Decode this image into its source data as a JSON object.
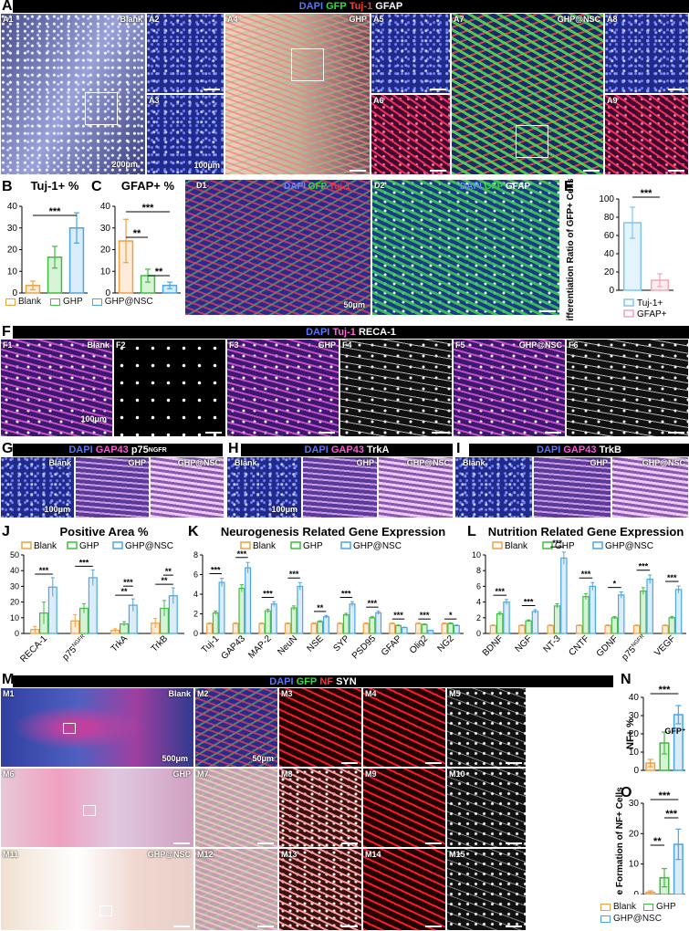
{
  "panels": {
    "A": {
      "letter": "A",
      "stain": [
        "DAPI",
        "GFP",
        "Tuj-1",
        "GFAP"
      ],
      "tiles": [
        "A1",
        "A2",
        "A3",
        "A4",
        "A5",
        "A6",
        "A7",
        "A8",
        "A9"
      ],
      "groups": [
        "Blank",
        "GHP",
        "GHP@NSC"
      ],
      "scale_big": "200μm",
      "scale_small": "100μm"
    },
    "B": {
      "letter": "B"
    },
    "C": {
      "letter": "C"
    },
    "D": {
      "letter": "D",
      "tiles": [
        "D1",
        "D2"
      ],
      "stain1": [
        "DAPI",
        "GFP",
        "Tuj-1"
      ],
      "stain2": [
        "DAPI",
        "GFP",
        "GFAP"
      ],
      "scale": "50μm"
    },
    "E": {
      "letter": "E"
    },
    "F": {
      "letter": "F",
      "stain": [
        "DAPI",
        "Tuj-1",
        "RECA-1"
      ],
      "tiles": [
        "F1",
        "F2",
        "F3",
        "F4",
        "F5",
        "F6"
      ],
      "groups": [
        "Blank",
        "GHP",
        "GHP@NSC"
      ],
      "scale": "100μm"
    },
    "G": {
      "letter": "G",
      "stain": [
        "DAPI",
        "GAP43",
        "p75"
      ],
      "stain_sup": "NGFR",
      "groups": [
        "Blank",
        "GHP",
        "GHP@NSC"
      ],
      "scale": "100μm"
    },
    "H": {
      "letter": "H",
      "stain": [
        "DAPI",
        "GAP43",
        "TrkA"
      ],
      "groups": [
        "Blank",
        "GHP",
        "GHP@NSC"
      ],
      "scale": "100μm"
    },
    "I": {
      "letter": "I",
      "stain": [
        "DAPI",
        "GAP43",
        "TrkB"
      ],
      "groups": [
        "Blank",
        "GHP",
        "GHP@NSC"
      ]
    },
    "J": {
      "letter": "J"
    },
    "K": {
      "letter": "K"
    },
    "L": {
      "letter": "L"
    },
    "M": {
      "letter": "M",
      "stain": [
        "DAPI",
        "GFP",
        "NF",
        "SYN"
      ],
      "tiles": [
        "M1",
        "M2",
        "M3",
        "M4",
        "M5",
        "M6",
        "M7",
        "M8",
        "M9",
        "M10",
        "M11",
        "M12",
        "M13",
        "M14",
        "M15"
      ],
      "groups": [
        "Blank",
        "GHP",
        "GHP@NSC"
      ],
      "scale_big": "500μm",
      "scale_small": "50μm"
    },
    "N": {
      "letter": "N",
      "annot": "GFP⁺"
    },
    "O": {
      "letter": "O"
    }
  },
  "legend": {
    "groups": [
      "Blank",
      "GHP",
      "GHP@NSC"
    ],
    "e_groups": [
      "Tuj-1+",
      "GFAP+"
    ]
  },
  "colors": {
    "blank": "#f0a040",
    "ghp": "#3cbf3c",
    "nsc": "#4aa6e6",
    "tuj": "#7fc6ef",
    "gfap": "#f4a6b8",
    "dapi": "#3a5cff",
    "gfp": "#2ecc40",
    "red": "#ff2020",
    "mag": "#e040e0"
  },
  "chart_data": [
    {
      "id": "B",
      "type": "bar",
      "title": "Tuj-1+ %",
      "categories": [
        "Blank",
        "GHP",
        "GHP@NSC"
      ],
      "values": [
        3.5,
        16.5,
        30
      ],
      "errors": [
        2,
        5,
        7
      ],
      "ylim": [
        0,
        40
      ],
      "yticks": [
        0,
        10,
        20,
        30,
        40
      ],
      "sig": [
        {
          "from": 0,
          "to": 2,
          "label": "***"
        }
      ]
    },
    {
      "id": "C",
      "type": "bar",
      "title": "GFAP+ %",
      "categories": [
        "Blank",
        "GHP",
        "GHP@NSC"
      ],
      "values": [
        24,
        8,
        3.5
      ],
      "errors": [
        10,
        3,
        1.5
      ],
      "ylim": [
        0,
        40
      ],
      "yticks": [
        0,
        10,
        20,
        30,
        40
      ],
      "sig": [
        {
          "from": 0,
          "to": 1,
          "label": "**"
        },
        {
          "from": 0,
          "to": 2,
          "label": "***"
        },
        {
          "from": 1,
          "to": 2,
          "label": "**"
        }
      ]
    },
    {
      "id": "E",
      "type": "bar",
      "ylabel": "Differentiation Ratio of GFP+ Cells (%)",
      "categories": [
        "Tuj-1+",
        "GFAP+"
      ],
      "values": [
        74,
        11
      ],
      "errors": [
        17,
        7
      ],
      "ylim": [
        0,
        100
      ],
      "yticks": [
        0,
        20,
        40,
        60,
        80,
        100
      ],
      "sig": [
        {
          "from": 0,
          "to": 1,
          "label": "***"
        }
      ]
    },
    {
      "id": "J",
      "type": "bar",
      "title": "Positive Area %",
      "categories": [
        "RECA-1",
        "p75NGFR",
        "TrkA",
        "TrkB"
      ],
      "series": [
        {
          "name": "Blank",
          "values": [
            2.5,
            8,
            2,
            6.5
          ],
          "errors": [
            2,
            4,
            1,
            3
          ]
        },
        {
          "name": "GHP",
          "values": [
            13,
            16,
            6,
            16
          ],
          "errors": [
            7,
            3,
            1.5,
            5
          ]
        },
        {
          "name": "GHP@NSC",
          "values": [
            29.5,
            35.5,
            18,
            24
          ],
          "errors": [
            6,
            5,
            4,
            5
          ]
        }
      ],
      "ylim": [
        0,
        50
      ],
      "yticks": [
        0,
        10,
        20,
        30,
        40,
        50
      ],
      "sig": [
        {
          "cat": 0,
          "label": "***"
        },
        {
          "cat": 1,
          "label": "***"
        },
        {
          "cat": 2,
          "label": "**"
        },
        {
          "cat": 2,
          "label": "***"
        },
        {
          "cat": 3,
          "label": "**"
        },
        {
          "cat": 3,
          "label": "**"
        }
      ]
    },
    {
      "id": "K",
      "type": "bar",
      "title": "Neurogenesis Related Gene Expression",
      "categories": [
        "Tuj-1",
        "GAP43",
        "MAP-2",
        "NeuN",
        "NSE",
        "SYP",
        "PSD95",
        "GFAP",
        "Olig2",
        "NG2"
      ],
      "series": [
        {
          "name": "Blank",
          "values": [
            1,
            1,
            1,
            1,
            1,
            1,
            1,
            1,
            1,
            1
          ]
        },
        {
          "name": "GHP",
          "values": [
            2.1,
            4.6,
            2.3,
            2.6,
            1.2,
            1.9,
            1.6,
            0.8,
            0.9,
            1.0
          ]
        },
        {
          "name": "GHP@NSC",
          "values": [
            5.2,
            6.7,
            3.0,
            4.8,
            1.7,
            3.0,
            2.1,
            0.6,
            0.3,
            0.8
          ]
        }
      ],
      "ylim": [
        0,
        8
      ],
      "yticks": [
        0,
        2,
        4,
        6,
        8
      ],
      "sig": [
        "***",
        "***",
        "***",
        "***",
        "**",
        "***",
        "***",
        "***",
        "***",
        "*"
      ]
    },
    {
      "id": "L",
      "type": "bar",
      "title": "Nutrition Related Gene Expression",
      "categories": [
        "BDNF",
        "NGF",
        "NT-3",
        "CNTF",
        "GDNF",
        "p75NGFR",
        "VEGF"
      ],
      "series": [
        {
          "name": "Blank",
          "values": [
            1,
            1,
            1,
            1,
            1,
            1,
            1
          ]
        },
        {
          "name": "GHP",
          "values": [
            2.5,
            1.6,
            3.5,
            4.7,
            2.0,
            5.4,
            2.0
          ]
        },
        {
          "name": "GHP@NSC",
          "values": [
            4.0,
            2.8,
            9.6,
            6.0,
            4.9,
            6.9,
            5.6
          ]
        }
      ],
      "ylim": [
        0,
        10
      ],
      "yticks": [
        0,
        2,
        4,
        6,
        8,
        10
      ],
      "sig": [
        "***",
        "***",
        "***",
        "***",
        "*",
        "***",
        "***"
      ]
    },
    {
      "id": "N",
      "type": "bar",
      "ylabel": "NF+ %",
      "categories": [
        "Blank",
        "GHP",
        "GHP@NSC"
      ],
      "values": [
        4,
        15,
        30.5
      ],
      "errors": [
        2,
        6,
        5
      ],
      "ylim": [
        0,
        40
      ],
      "yticks": [
        0,
        10,
        20,
        30,
        40
      ],
      "sig": [
        {
          "from": 0,
          "to": 2,
          "label": "***"
        }
      ]
    },
    {
      "id": "O",
      "type": "bar",
      "ylabel": "Synapse Formation of NF+ Cells (%)",
      "categories": [
        "Blank",
        "GHP",
        "GHP@NSC"
      ],
      "values": [
        0.7,
        5.5,
        16.5
      ],
      "errors": [
        0.5,
        3,
        5
      ],
      "ylim": [
        0,
        30
      ],
      "yticks": [
        0,
        10,
        20,
        30
      ],
      "sig": [
        {
          "from": 0,
          "to": 1,
          "label": "**"
        },
        {
          "from": 0,
          "to": 2,
          "label": "***"
        },
        {
          "from": 1,
          "to": 2,
          "label": "***"
        }
      ]
    }
  ]
}
